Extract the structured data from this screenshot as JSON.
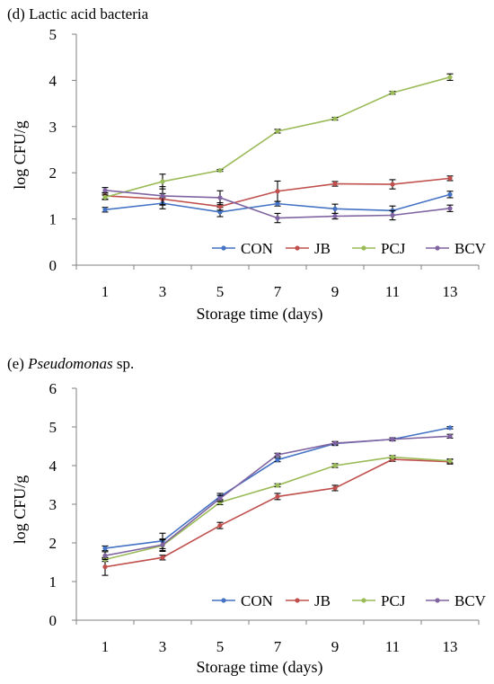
{
  "chart_data": [
    {
      "type": "line",
      "panel_label": "(d) Lactic acid bacteria",
      "xlabel": "Storage time (days)",
      "ylabel": "log CFU/g",
      "x": [
        1,
        3,
        5,
        7,
        9,
        11,
        13
      ],
      "ylim": [
        0,
        5
      ],
      "yticks": [
        0,
        1,
        2,
        3,
        4,
        5
      ],
      "grid": false,
      "legend_placement": "bottom-right",
      "series": [
        {
          "name": "CON",
          "color": "#4472C4",
          "values": [
            1.2,
            1.34,
            1.15,
            1.33,
            1.22,
            1.18,
            1.53
          ],
          "errors": [
            0.05,
            0.12,
            0.1,
            0.05,
            0.1,
            0.1,
            0.07
          ]
        },
        {
          "name": "JB",
          "color": "#C0504D",
          "values": [
            1.5,
            1.43,
            1.27,
            1.6,
            1.76,
            1.75,
            1.88
          ],
          "errors": [
            0.07,
            0.12,
            0.08,
            0.22,
            0.05,
            0.1,
            0.05
          ]
        },
        {
          "name": "PCJ",
          "color": "#9BBB59",
          "values": [
            1.47,
            1.81,
            2.05,
            2.9,
            3.17,
            3.73,
            4.07
          ],
          "errors": [
            0.05,
            0.16,
            0.02,
            0.04,
            0.03,
            0.03,
            0.07
          ]
        },
        {
          "name": "BCV",
          "color": "#8064A2",
          "values": [
            1.62,
            1.5,
            1.46,
            1.02,
            1.06,
            1.08,
            1.23
          ],
          "errors": [
            0.06,
            0.2,
            0.15,
            0.1,
            0.06,
            0.1,
            0.07
          ]
        }
      ]
    },
    {
      "type": "line",
      "panel_label_prefix": "(e) ",
      "panel_label_italic": "Pseudomonas",
      "panel_label_suffix": " sp.",
      "xlabel": "Storage time (days)",
      "ylabel": "log CFU/g",
      "x": [
        1,
        3,
        5,
        7,
        9,
        11,
        13
      ],
      "ylim": [
        0,
        6
      ],
      "yticks": [
        0,
        1,
        2,
        3,
        4,
        5,
        6
      ],
      "grid": false,
      "legend_placement": "bottom-right",
      "series": [
        {
          "name": "CON",
          "color": "#4472C4",
          "values": [
            1.86,
            2.05,
            3.2,
            4.15,
            4.57,
            4.68,
            4.98
          ],
          "errors": [
            0.06,
            0.2,
            0.08,
            0.05,
            0.05,
            0.04,
            0.03
          ]
        },
        {
          "name": "JB",
          "color": "#C0504D",
          "values": [
            1.38,
            1.62,
            2.45,
            3.2,
            3.42,
            4.16,
            4.1
          ],
          "errors": [
            0.22,
            0.06,
            0.08,
            0.08,
            0.07,
            0.05,
            0.06
          ]
        },
        {
          "name": "PCJ",
          "color": "#9BBB59",
          "values": [
            1.57,
            1.93,
            3.05,
            3.49,
            4.0,
            4.22,
            4.12
          ],
          "errors": [
            0.05,
            0.15,
            0.06,
            0.04,
            0.05,
            0.04,
            0.05
          ]
        },
        {
          "name": "BCV",
          "color": "#8064A2",
          "values": [
            1.67,
            1.95,
            3.15,
            4.28,
            4.58,
            4.68,
            4.76
          ],
          "errors": [
            0.1,
            0.15,
            0.08,
            0.04,
            0.04,
            0.04,
            0.05
          ]
        }
      ]
    }
  ]
}
